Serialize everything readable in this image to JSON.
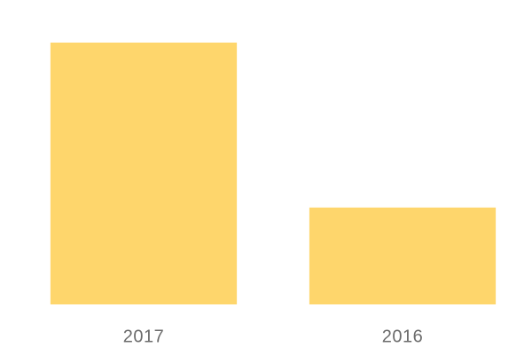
{
  "chart_data": {
    "type": "bar",
    "categories": [
      "2017",
      "2016"
    ],
    "values": [
      100,
      37
    ],
    "color": "#fed66c"
  }
}
